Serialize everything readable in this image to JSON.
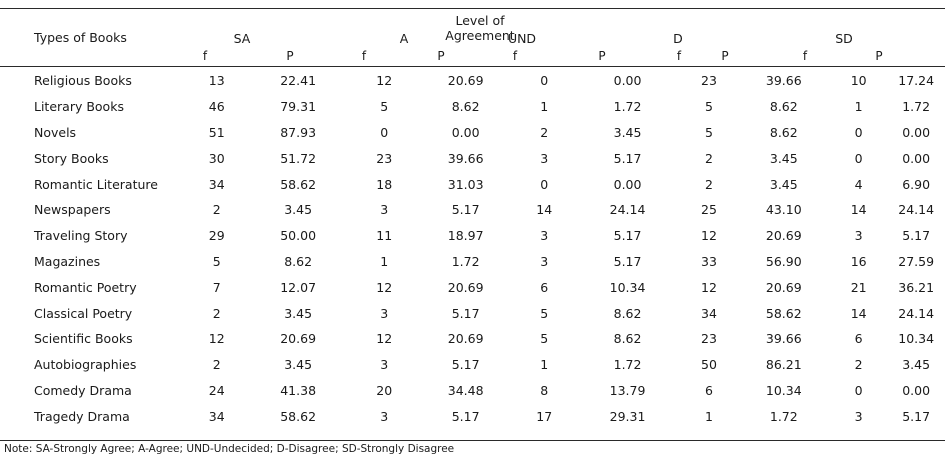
{
  "header": {
    "level": "Level of Agreement",
    "types": "Types of Books",
    "groups": [
      "SA",
      "A",
      "UND",
      "D",
      "SD"
    ],
    "sub_f": "f",
    "sub_p": "P"
  },
  "rows": [
    {
      "name": "Religious Books",
      "v": [
        "13",
        "22.41",
        "12",
        "20.69",
        "0",
        "0.00",
        "23",
        "39.66",
        "10",
        "17.24"
      ]
    },
    {
      "name": "Literary Books",
      "v": [
        "46",
        "79.31",
        "5",
        "8.62",
        "1",
        "1.72",
        "5",
        "8.62",
        "1",
        "1.72"
      ]
    },
    {
      "name": "Novels",
      "v": [
        "51",
        "87.93",
        "0",
        "0.00",
        "2",
        "3.45",
        "5",
        "8.62",
        "0",
        "0.00"
      ]
    },
    {
      "name": "Story Books",
      "v": [
        "30",
        "51.72",
        "23",
        "39.66",
        "3",
        "5.17",
        "2",
        "3.45",
        "0",
        "0.00"
      ]
    },
    {
      "name": "Romantic Literature",
      "v": [
        "34",
        "58.62",
        "18",
        "31.03",
        "0",
        "0.00",
        "2",
        "3.45",
        "4",
        "6.90"
      ]
    },
    {
      "name": "Newspapers",
      "v": [
        "2",
        "3.45",
        "3",
        "5.17",
        "14",
        "24.14",
        "25",
        "43.10",
        "14",
        "24.14"
      ]
    },
    {
      "name": "Traveling Story",
      "v": [
        "29",
        "50.00",
        "11",
        "18.97",
        "3",
        "5.17",
        "12",
        "20.69",
        "3",
        "5.17"
      ]
    },
    {
      "name": "Magazines",
      "v": [
        "5",
        "8.62",
        "1",
        "1.72",
        "3",
        "5.17",
        "33",
        "56.90",
        "16",
        "27.59"
      ]
    },
    {
      "name": "Romantic Poetry",
      "v": [
        "7",
        "12.07",
        "12",
        "20.69",
        "6",
        "10.34",
        "12",
        "20.69",
        "21",
        "36.21"
      ]
    },
    {
      "name": "Classical Poetry",
      "v": [
        "2",
        "3.45",
        "3",
        "5.17",
        "5",
        "8.62",
        "34",
        "58.62",
        "14",
        "24.14"
      ]
    },
    {
      "name": "Scientific Books",
      "v": [
        "12",
        "20.69",
        "12",
        "20.69",
        "5",
        "8.62",
        "23",
        "39.66",
        "6",
        "10.34"
      ]
    },
    {
      "name": "Autobiographies",
      "v": [
        "2",
        "3.45",
        "3",
        "5.17",
        "1",
        "1.72",
        "50",
        "86.21",
        "2",
        "3.45"
      ]
    },
    {
      "name": "Comedy Drama",
      "v": [
        "24",
        "41.38",
        "20",
        "34.48",
        "8",
        "13.79",
        "6",
        "10.34",
        "0",
        "0.00"
      ]
    },
    {
      "name": "Tragedy Drama",
      "v": [
        "34",
        "58.62",
        "3",
        "5.17",
        "17",
        "29.31",
        "1",
        "1.72",
        "3",
        "5.17"
      ]
    }
  ],
  "note": "Note: SA-Strongly Agree; A-Agree; UND-Undecided; D-Disagree; SD-Strongly Disagree"
}
